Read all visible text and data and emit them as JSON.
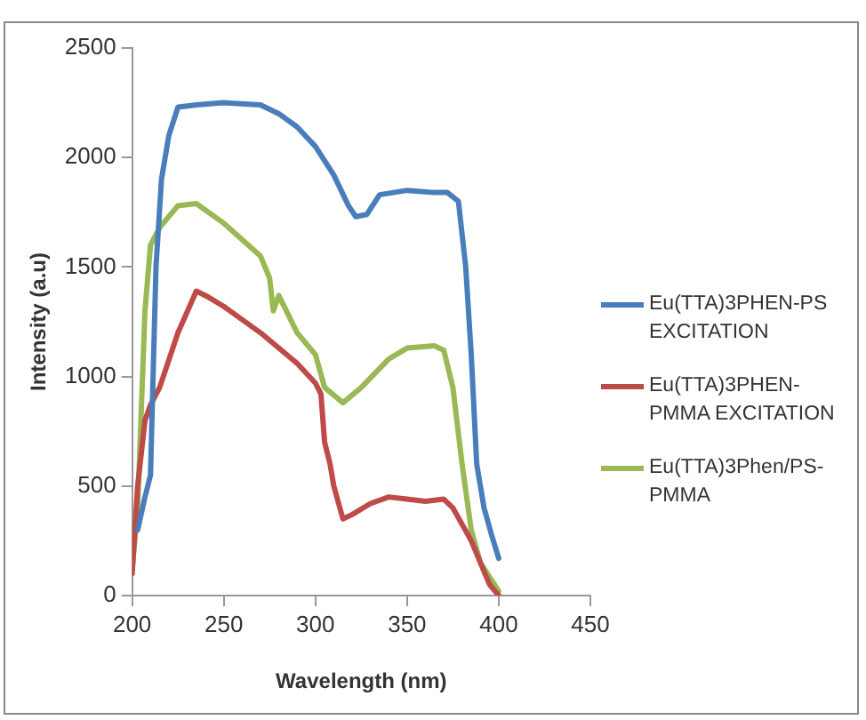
{
  "chart_data": {
    "type": "line",
    "xlabel": "Wavelength (nm)",
    "ylabel": "Intensity (a.u)",
    "xlim": [
      200,
      450
    ],
    "xticks": [
      200,
      250,
      300,
      350,
      400,
      450
    ],
    "ylim": [
      0,
      2500
    ],
    "yticks": [
      0,
      500,
      1000,
      1500,
      2000,
      2500
    ],
    "grid": false,
    "legend": "right",
    "marker": "none",
    "line_style": "solid",
    "series": [
      {
        "name": "Eu(TTA)3PHEN-PS EXCITATION",
        "color": "#4a7ebb",
        "x": [
          203,
          207,
          210,
          213,
          216,
          220,
          225,
          235,
          250,
          270,
          280,
          290,
          300,
          310,
          318,
          322,
          328,
          335,
          350,
          365,
          372,
          378,
          382,
          385,
          388,
          392,
          396,
          400
        ],
        "values": [
          300,
          450,
          550,
          1500,
          1900,
          2100,
          2230,
          2240,
          2250,
          2240,
          2200,
          2140,
          2050,
          1920,
          1780,
          1730,
          1740,
          1830,
          1850,
          1840,
          1840,
          1800,
          1500,
          1100,
          600,
          400,
          280,
          170
        ]
      },
      {
        "name": "Eu(TTA)3PHEN-PMMA EXCITATION",
        "color": "#be4b48",
        "x": [
          200,
          203,
          207,
          210,
          215,
          225,
          235,
          240,
          250,
          270,
          290,
          300,
          303,
          305,
          308,
          310,
          315,
          320,
          330,
          340,
          350,
          360,
          370,
          375,
          385,
          395,
          400
        ],
        "values": [
          100,
          500,
          800,
          870,
          950,
          1200,
          1390,
          1370,
          1320,
          1200,
          1060,
          970,
          920,
          700,
          600,
          500,
          350,
          370,
          420,
          450,
          440,
          430,
          440,
          400,
          250,
          50,
          0
        ]
      },
      {
        "name": "Eu(TTA)3Phen/PS-PMMA",
        "color": "#98b954",
        "x": [
          200,
          203,
          207,
          210,
          215,
          225,
          235,
          250,
          270,
          275,
          277,
          280,
          290,
          300,
          305,
          315,
          325,
          340,
          350,
          365,
          370,
          375,
          380,
          385,
          390,
          400
        ],
        "values": [
          120,
          400,
          1300,
          1600,
          1680,
          1780,
          1790,
          1700,
          1550,
          1450,
          1300,
          1370,
          1200,
          1100,
          950,
          880,
          950,
          1080,
          1130,
          1140,
          1120,
          950,
          600,
          300,
          150,
          20
        ]
      }
    ]
  }
}
